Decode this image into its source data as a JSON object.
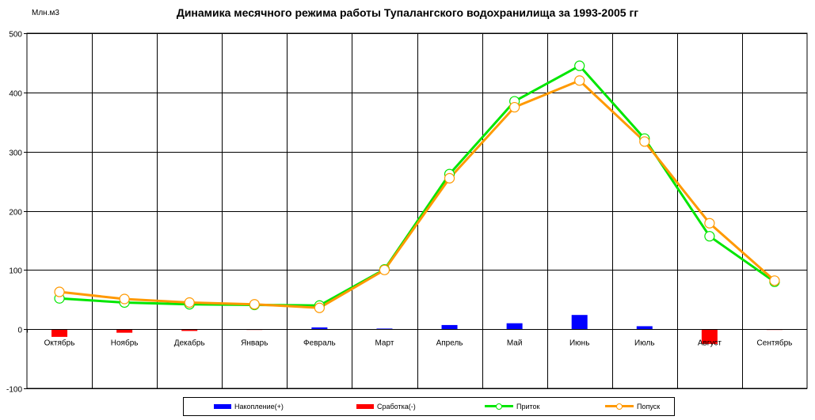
{
  "chart_data": {
    "type": "bar+line",
    "title": "Динамика месячного режима работы Тупалангского водохранилища за 1993-2005 гг",
    "unit_label": "Млн.м3",
    "categories": [
      "Октябрь",
      "Ноябрь",
      "Декабрь",
      "Январь",
      "Февраль",
      "Март",
      "Апрель",
      "Май",
      "Июнь",
      "Июль",
      "Август",
      "Сентябрь"
    ],
    "ylim": [
      -100,
      500
    ],
    "yticks": [
      "500",
      "400",
      "300",
      "200",
      "100",
      "0",
      "-100"
    ],
    "grid": true,
    "legend_position": "bottom",
    "bar_series": [
      {
        "name": "Накопление(+)",
        "color": "#0000ff",
        "values": [
          0,
          0,
          0,
          0,
          3,
          1,
          7,
          10,
          24,
          5,
          0,
          0
        ]
      },
      {
        "name": "Сработка(-)",
        "color": "#ff0000",
        "values": [
          -13,
          -6,
          -3,
          -1,
          0,
          0,
          0,
          0,
          0,
          0,
          -25,
          -1
        ]
      }
    ],
    "line_series": [
      {
        "name": "Приток",
        "color": "#00e600",
        "values": [
          52,
          45,
          42,
          41,
          40,
          101,
          262,
          385,
          445,
          322,
          157,
          80
        ]
      },
      {
        "name": "Попуск",
        "color": "#ff9900",
        "values": [
          63,
          51,
          45,
          42,
          36,
          100,
          255,
          375,
          420,
          317,
          179,
          82
        ]
      }
    ]
  }
}
